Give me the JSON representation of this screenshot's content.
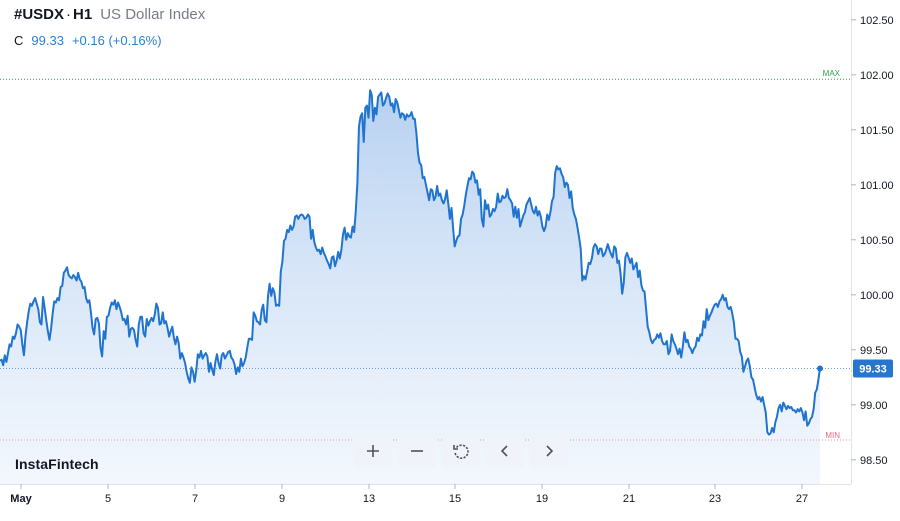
{
  "header": {
    "symbol": "#USDX",
    "separator": "·",
    "timeframe": "H1",
    "name": "US Dollar Index"
  },
  "quote": {
    "label": "C",
    "close": "99.33",
    "change": "+0.16 (+0.16%)"
  },
  "logo": "InstaFintech",
  "toolbar": {
    "buttons": [
      "zoom-in-icon",
      "zoom-out-icon",
      "reset-icon",
      "scroll-left-icon",
      "scroll-right-icon"
    ]
  },
  "colors": {
    "line": "#1f74cf",
    "area": "#bcd5f1",
    "max_line": "#2e9e52",
    "min_line": "#e8929d",
    "price_badge": "#2775cc"
  },
  "chart_data": {
    "type": "area",
    "title": "US Dollar Index",
    "x_ticks": [
      "May",
      "5",
      "7",
      "9",
      "13",
      "15",
      "19",
      "21",
      "23",
      "27"
    ],
    "y_ticks": [
      "102.50",
      "102.00",
      "101.50",
      "101.00",
      "100.50",
      "100.00",
      "99.50",
      "99.00",
      "98.50"
    ],
    "ylim": [
      98.28,
      102.68
    ],
    "max_label": "MAX",
    "max_value": 101.96,
    "min_label": "MIN",
    "min_value": 98.68,
    "last_price_label": "99.33",
    "last_price": 99.33,
    "grid": false,
    "series": [
      {
        "values": [
          99.4,
          99.41,
          99.36,
          99.45,
          99.39,
          99.47,
          99.55,
          99.53,
          99.62,
          99.6,
          99.65,
          99.73,
          99.71,
          99.68,
          99.55,
          99.45,
          99.63,
          99.75,
          99.85,
          99.92,
          99.9,
          99.94,
          99.97,
          99.92,
          99.87,
          99.75,
          99.73,
          99.98,
          99.88,
          99.77,
          99.67,
          99.59,
          99.69,
          99.83,
          99.94,
          99.93,
          99.97,
          99.95,
          100.07,
          100.08,
          100.2,
          100.22,
          100.25,
          100.18,
          100.16,
          100.15,
          100.18,
          100.16,
          100.13,
          100.2,
          100.14,
          100.12,
          100.06,
          100.07,
          99.97,
          99.93,
          99.95,
          99.84,
          99.7,
          99.64,
          99.78,
          99.79,
          99.74,
          99.52,
          99.44,
          99.67,
          99.6,
          99.8,
          99.81,
          99.88,
          99.93,
          99.91,
          99.95,
          99.87,
          99.93,
          99.89,
          99.84,
          99.77,
          99.78,
          99.73,
          99.81,
          99.62,
          99.69,
          99.7,
          99.68,
          99.59,
          99.53,
          99.73,
          99.8,
          99.8,
          99.65,
          99.62,
          99.78,
          99.72,
          99.76,
          99.79,
          99.76,
          99.82,
          99.92,
          99.88,
          99.73,
          99.74,
          99.84,
          99.74,
          99.76,
          99.7,
          99.62,
          99.67,
          99.71,
          99.61,
          99.55,
          99.62,
          99.56,
          99.42,
          99.47,
          99.43,
          99.38,
          99.3,
          99.24,
          99.2,
          99.34,
          99.3,
          99.21,
          99.31,
          99.46,
          99.43,
          99.49,
          99.42,
          99.45,
          99.47,
          99.44,
          99.3,
          99.38,
          99.32,
          99.27,
          99.39,
          99.46,
          99.38,
          99.33,
          99.45,
          99.47,
          99.42,
          99.45,
          99.48,
          99.49,
          99.43,
          99.41,
          99.37,
          99.28,
          99.34,
          99.3,
          99.42,
          99.35,
          99.38,
          99.43,
          99.52,
          99.6,
          99.6,
          99.59,
          99.84,
          99.81,
          99.76,
          99.75,
          99.73,
          99.86,
          99.91,
          99.77,
          99.75,
          99.99,
          100.1,
          99.99,
          100.06,
          100.02,
          99.9,
          99.91,
          99.9,
          100.21,
          100.3,
          100.49,
          100.51,
          100.59,
          100.57,
          100.63,
          100.59,
          100.62,
          100.71,
          100.72,
          100.69,
          100.72,
          100.73,
          100.72,
          100.69,
          100.7,
          100.73,
          100.71,
          100.51,
          100.59,
          100.48,
          100.43,
          100.4,
          100.41,
          100.37,
          100.43,
          100.38,
          100.35,
          100.31,
          100.28,
          100.24,
          100.34,
          100.35,
          100.26,
          100.31,
          100.39,
          100.33,
          100.41,
          100.55,
          100.61,
          100.5,
          100.56,
          100.53,
          100.52,
          100.62,
          100.57,
          100.76,
          101.01,
          101.53,
          101.62,
          101.65,
          101.39,
          101.7,
          101.72,
          101.61,
          101.86,
          101.82,
          101.58,
          101.7,
          101.64,
          101.8,
          101.82,
          101.84,
          101.72,
          101.74,
          101.79,
          101.83,
          101.8,
          101.72,
          101.74,
          101.66,
          101.78,
          101.75,
          101.68,
          101.61,
          101.65,
          101.64,
          101.59,
          101.64,
          101.62,
          101.63,
          101.66,
          101.6,
          101.6,
          101.47,
          101.29,
          101.2,
          101.18,
          101.06,
          101.07,
          101.0,
          100.93,
          100.86,
          100.96,
          100.95,
          100.86,
          100.89,
          100.99,
          100.9,
          100.92,
          100.86,
          100.83,
          100.87,
          100.95,
          100.83,
          100.69,
          100.79,
          100.61,
          100.44,
          100.49,
          100.53,
          100.54,
          100.69,
          100.73,
          100.81,
          100.91,
          100.99,
          101.06,
          101.05,
          101.12,
          101.1,
          101.02,
          101.04,
          100.91,
          100.96,
          100.69,
          100.62,
          100.86,
          100.78,
          100.82,
          100.71,
          100.73,
          100.78,
          100.76,
          100.8,
          100.92,
          100.84,
          100.85,
          100.9,
          100.88,
          100.89,
          100.96,
          100.88,
          100.86,
          100.83,
          100.71,
          100.8,
          100.7,
          100.78,
          100.62,
          100.67,
          100.72,
          100.75,
          100.82,
          100.85,
          100.88,
          100.82,
          100.76,
          100.74,
          100.8,
          100.72,
          100.76,
          100.71,
          100.62,
          100.58,
          100.62,
          100.73,
          100.68,
          100.75,
          100.85,
          100.89,
          101.11,
          101.17,
          101.14,
          101.15,
          101.1,
          101.07,
          100.98,
          101.02,
          101.0,
          100.88,
          100.94,
          100.79,
          100.73,
          100.69,
          100.61,
          100.52,
          100.42,
          100.13,
          100.17,
          100.14,
          100.21,
          100.29,
          100.28,
          100.33,
          100.43,
          100.46,
          100.44,
          100.37,
          100.42,
          100.42,
          100.35,
          100.37,
          100.41,
          100.46,
          100.41,
          100.37,
          100.34,
          100.44,
          100.42,
          100.29,
          100.31,
          100.19,
          100.01,
          100.11,
          100.34,
          100.38,
          100.34,
          100.29,
          100.33,
          100.23,
          100.26,
          100.29,
          100.16,
          100.22,
          100.09,
          100.04,
          100.03,
          99.87,
          99.71,
          99.66,
          99.59,
          99.56,
          99.59,
          99.6,
          99.64,
          99.61,
          99.65,
          99.58,
          99.55,
          99.55,
          99.58,
          99.46,
          99.49,
          99.64,
          99.58,
          99.55,
          99.51,
          99.46,
          99.51,
          99.43,
          99.53,
          99.66,
          99.57,
          99.59,
          99.53,
          99.51,
          99.47,
          99.51,
          99.53,
          99.61,
          99.58,
          99.64,
          99.63,
          99.76,
          99.7,
          99.87,
          99.77,
          99.81,
          99.84,
          99.88,
          99.91,
          99.92,
          99.89,
          99.94,
          99.96,
          100.0,
          99.95,
          99.97,
          99.89,
          99.87,
          99.89,
          99.83,
          99.75,
          99.6,
          99.6,
          99.58,
          99.48,
          99.44,
          99.3,
          99.35,
          99.4,
          99.42,
          99.35,
          99.25,
          99.23,
          99.16,
          99.09,
          99.05,
          99.07,
          99.03,
          99.07,
          99.0,
          98.93,
          98.75,
          98.73,
          98.74,
          98.79,
          98.75,
          98.84,
          98.89,
          98.97,
          99.0,
          98.94,
          99.02,
          98.99,
          98.96,
          98.99,
          98.97,
          98.98,
          98.95,
          98.95,
          98.93,
          98.96,
          98.94,
          98.97,
          98.93,
          98.86,
          98.94,
          98.81,
          98.83,
          98.87,
          98.89,
          98.96,
          99.11,
          99.14,
          99.23,
          99.33
        ]
      }
    ]
  }
}
